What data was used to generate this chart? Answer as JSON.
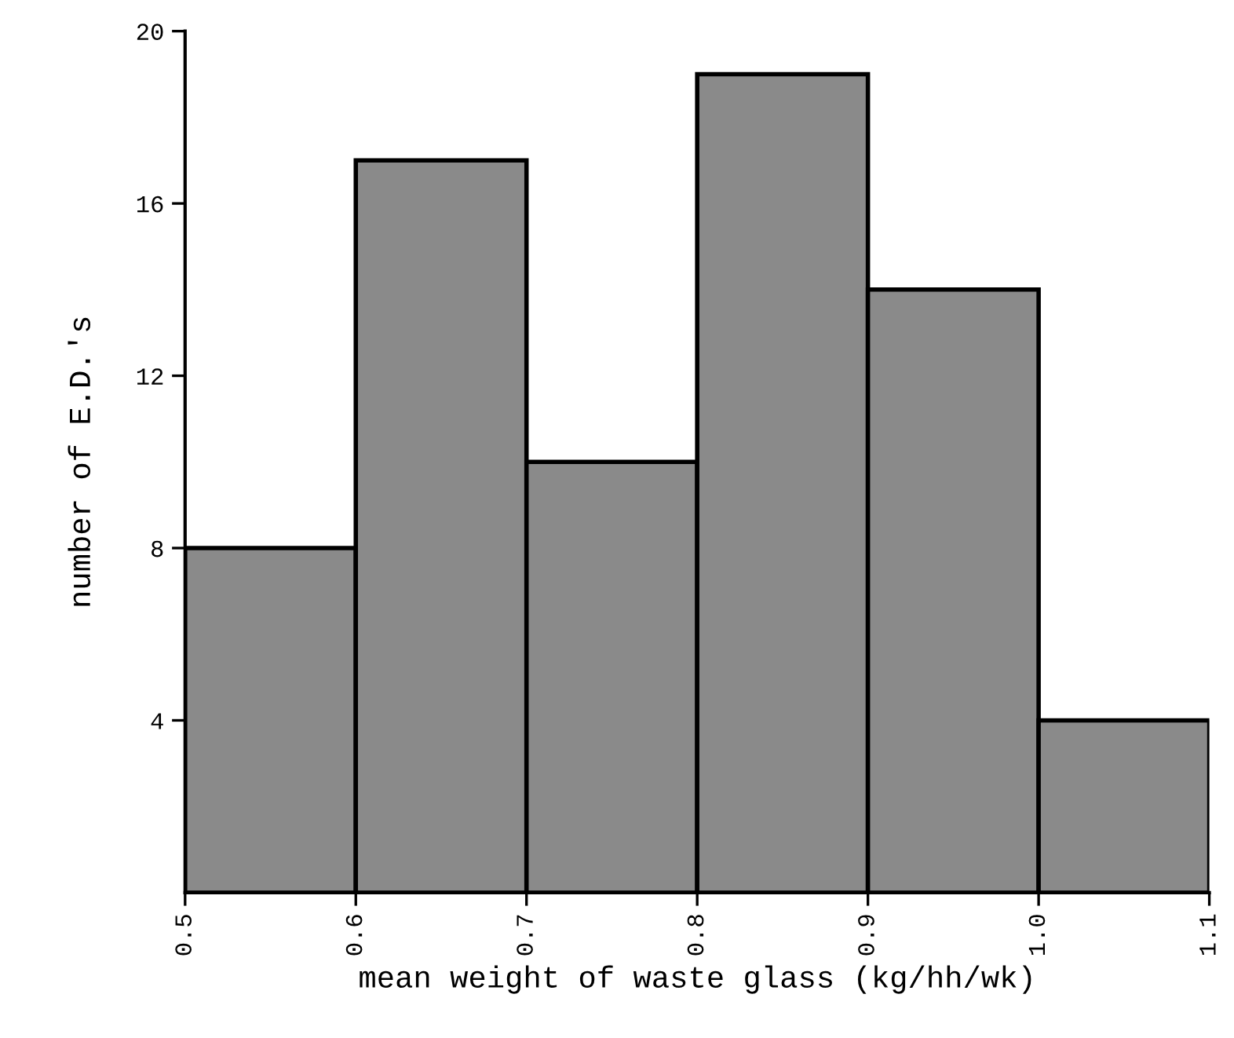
{
  "chart_data": {
    "type": "histogram",
    "xlabel": "mean weight of waste glass (kg/hh/wk)",
    "ylabel": "number of E.D.'s",
    "bins": [
      0.5,
      0.6,
      0.7,
      0.8,
      0.9,
      1.0,
      1.1
    ],
    "values": [
      8,
      17,
      10,
      19,
      14,
      4
    ],
    "color": "#8a8a8a",
    "xlim": [
      0.5,
      1.1
    ],
    "xticks": [
      {
        "value": 0.5,
        "label": "0.5"
      },
      {
        "value": 0.6,
        "label": "0.6"
      },
      {
        "value": 0.7,
        "label": "0.7"
      },
      {
        "value": 0.8,
        "label": "0.8"
      },
      {
        "value": 0.9,
        "label": "0.9"
      },
      {
        "value": 1.0,
        "label": "1.0"
      },
      {
        "value": 1.1,
        "label": "1.1"
      }
    ],
    "ylim": [
      0,
      20
    ],
    "yticks": [
      4,
      8,
      12,
      16,
      20
    ],
    "grid": false,
    "legend": false
  }
}
